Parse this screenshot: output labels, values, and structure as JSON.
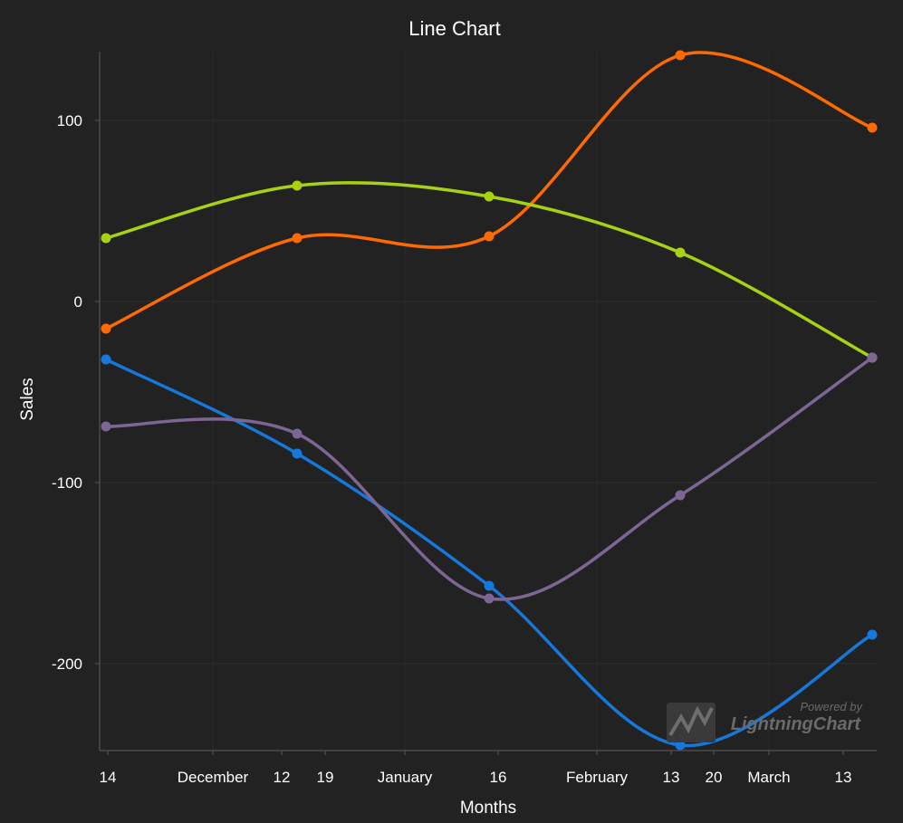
{
  "chart_data": {
    "type": "line",
    "title": "Line Chart",
    "xlabel": "Months",
    "ylabel": "Sales",
    "x_tick_labels": [
      "14",
      "December",
      "12",
      "19",
      "January",
      "16",
      "February",
      "13",
      "20",
      "March",
      "13"
    ],
    "y_ticks": [
      100,
      0,
      -100,
      -200
    ],
    "ylim": [
      -248,
      138
    ],
    "grid": true,
    "legend": "none",
    "x_points": [
      "Nov 14",
      "Dec 16",
      "Jan 16",
      "Feb 16",
      "Mar 16"
    ],
    "series": [
      {
        "color": "#FF6A00",
        "values": [
          -15,
          35,
          36,
          136,
          96
        ]
      },
      {
        "color": "#A6D212",
        "values": [
          35,
          64,
          58,
          27,
          -31
        ]
      },
      {
        "color": "#1678DA",
        "values": [
          -32,
          -84,
          -157,
          -245,
          -184
        ]
      },
      {
        "color": "#7E6694",
        "values": [
          -69,
          -73,
          -164,
          -107,
          -31
        ]
      }
    ],
    "watermark": {
      "line1": "Powered by",
      "line2": "LightningChart"
    }
  }
}
